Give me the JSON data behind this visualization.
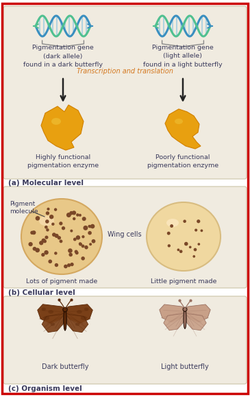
{
  "bg_color": "#ffffff",
  "border_color": "#cc0000",
  "panel_bg": "#f0ebe0",
  "panel_edge": "#ccc4a8",
  "text_dark": "#3a3a5c",
  "text_orange": "#d47820",
  "title_a": "(a) Molecular level",
  "title_b": "(b) Cellular level",
  "title_c": "(c) Organism level",
  "left_gene_label": "Pigmentation gene\n(dark allele)\nfound in a dark butterfly",
  "right_gene_label": "Pigmentation gene\n(light allele)\nfound in a light butterfly",
  "transcription_label": "Transcription and translation",
  "left_enzyme_label": "Highly functional\npigmentation enzyme",
  "right_enzyme_label": "Poorly functional\npigmentation enzyme",
  "pigment_molecule_label": "Pigment\nmolecule",
  "wing_cells_label": "Wing cells",
  "lots_pigment_label": "Lots of pigment made",
  "little_pigment_label": "Little pigment made",
  "dark_butterfly_label": "Dark butterfly",
  "light_butterfly_label": "Light butterfly",
  "dna_blue": "#3a8fc0",
  "dna_green": "#50c090",
  "dna_rung": "#90c8e0",
  "enzyme_orange": "#e8a010",
  "enzyme_highlight": "#f0c840",
  "cell_dark_fill": "#e8c888",
  "cell_dark_edge": "#d4a860",
  "cell_light_fill": "#f0d8a0",
  "cell_light_edge": "#d8bc80",
  "dot_dark": "#7a4828",
  "dot_light": "#a06840",
  "dark_wing": "#7a4018",
  "dark_body": "#5a2808",
  "light_wing": "#c8a088",
  "light_body": "#9a7060"
}
